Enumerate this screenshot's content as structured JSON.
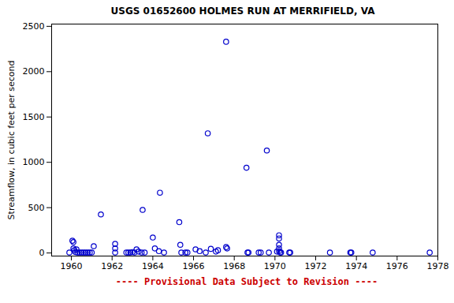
{
  "chart_data": {
    "type": "scatter",
    "title": "USGS 01652600 HOLMES RUN AT MERRIFIELD, VA",
    "y_label": "Streamflow, in cubic feet per second",
    "caption": "---- Provisional Data Subject to Revision ----",
    "x": [
      1959.9,
      1960.05,
      1960.1,
      1960.1,
      1960.15,
      1960.2,
      1960.25,
      1960.3,
      1960.4,
      1960.5,
      1960.6,
      1960.7,
      1960.8,
      1960.9,
      1961.0,
      1961.1,
      1961.45,
      1962.15,
      1962.15,
      1962.15,
      1962.7,
      1962.8,
      1962.9,
      1963.0,
      1963.1,
      1963.2,
      1963.3,
      1963.45,
      1963.5,
      1963.6,
      1964.0,
      1964.1,
      1964.3,
      1964.35,
      1964.55,
      1965.3,
      1965.35,
      1965.4,
      1965.6,
      1965.7,
      1966.1,
      1966.3,
      1966.6,
      1966.7,
      1966.85,
      1967.1,
      1967.2,
      1967.6,
      1967.6,
      1967.65,
      1968.6,
      1968.65,
      1968.7,
      1969.2,
      1969.3,
      1969.6,
      1969.7,
      1970.1,
      1970.2,
      1970.2,
      1970.2,
      1970.2,
      1970.2,
      1970.25,
      1970.3,
      1970.7,
      1970.75,
      1972.7,
      1973.7,
      1973.75,
      1974.8,
      1977.6
    ],
    "values": [
      5,
      135,
      120,
      50,
      30,
      10,
      40,
      5,
      5,
      5,
      5,
      5,
      5,
      5,
      5,
      75,
      425,
      100,
      50,
      5,
      5,
      5,
      5,
      10,
      5,
      40,
      15,
      5,
      475,
      5,
      170,
      50,
      20,
      665,
      5,
      340,
      90,
      5,
      5,
      5,
      40,
      20,
      5,
      1320,
      45,
      15,
      30,
      2330,
      65,
      50,
      940,
      5,
      5,
      5,
      5,
      1130,
      5,
      15,
      195,
      160,
      90,
      50,
      20,
      5,
      5,
      5,
      5,
      5,
      5,
      5,
      5,
      5
    ],
    "xlim": [
      1959.03,
      1978
    ],
    "ylim": [
      -34,
      2525
    ],
    "xticks": [
      1960,
      1962,
      1964,
      1966,
      1968,
      1970,
      1972,
      1974,
      1976,
      1978
    ],
    "yticks": [
      0,
      500,
      1000,
      1500,
      2000,
      2500
    ],
    "color": "#0000cc",
    "marker": "circle",
    "grid": false
  }
}
